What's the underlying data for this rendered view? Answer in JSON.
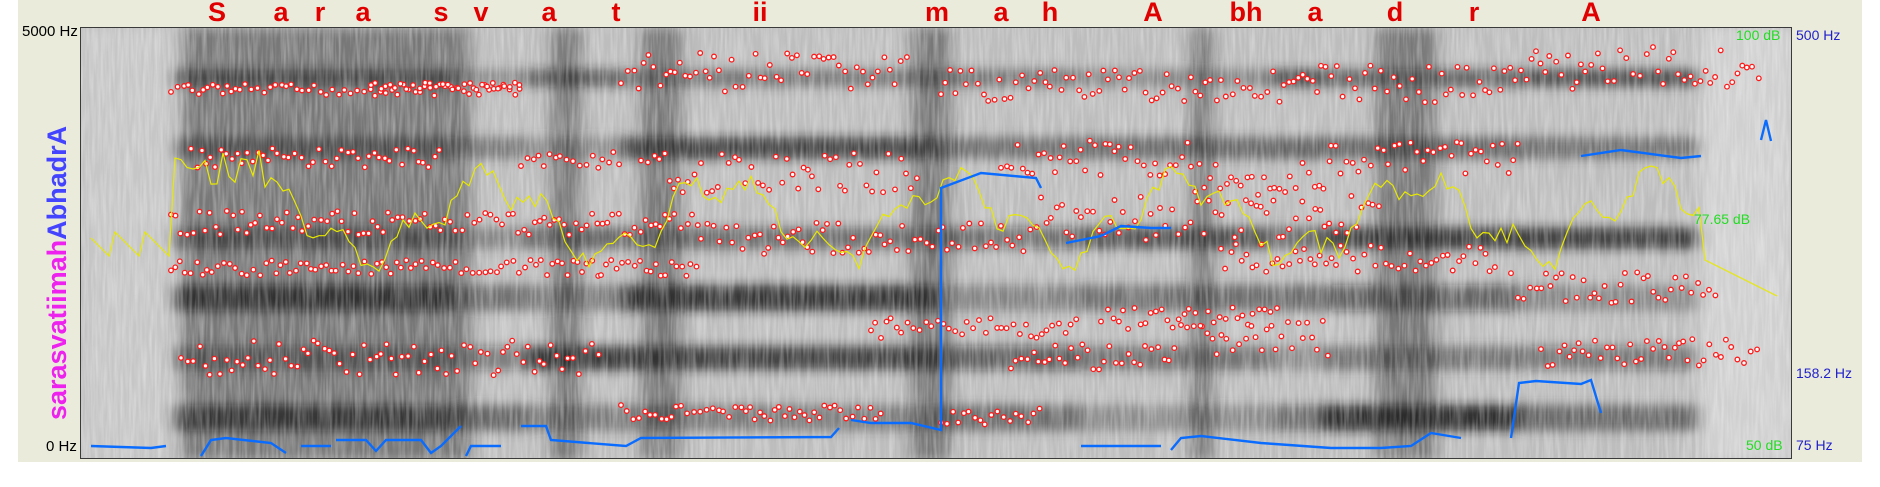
{
  "title": {
    "part1": "sarasvatiimah",
    "part2": "AbhadrA",
    "color1": "#ee22ee",
    "color2": "#4444ff"
  },
  "phones": [
    "S",
    "a",
    "r",
    "a",
    "s",
    "v",
    "a",
    "t",
    "ii",
    "m",
    "a",
    "h",
    "A",
    "bh",
    "a",
    "d",
    "r",
    "A"
  ],
  "axis": {
    "freq_top": "5000 Hz",
    "freq_bottom": "0 Hz",
    "pitch_top": "500 Hz",
    "pitch_mid": "158.2 Hz",
    "pitch_bottom": "75 Hz",
    "intensity_top": "100 dB",
    "intensity_mid": "77.65 dB",
    "intensity_bottom": "50 dB"
  },
  "colors": {
    "phone_label": "#e00000",
    "formant": "#ff1a1a",
    "pitch": "#0a6cff",
    "intensity": "#e8e800",
    "pitch_axis_text": "#1f1fcc",
    "intensity_axis_text": "#22dd22"
  }
}
